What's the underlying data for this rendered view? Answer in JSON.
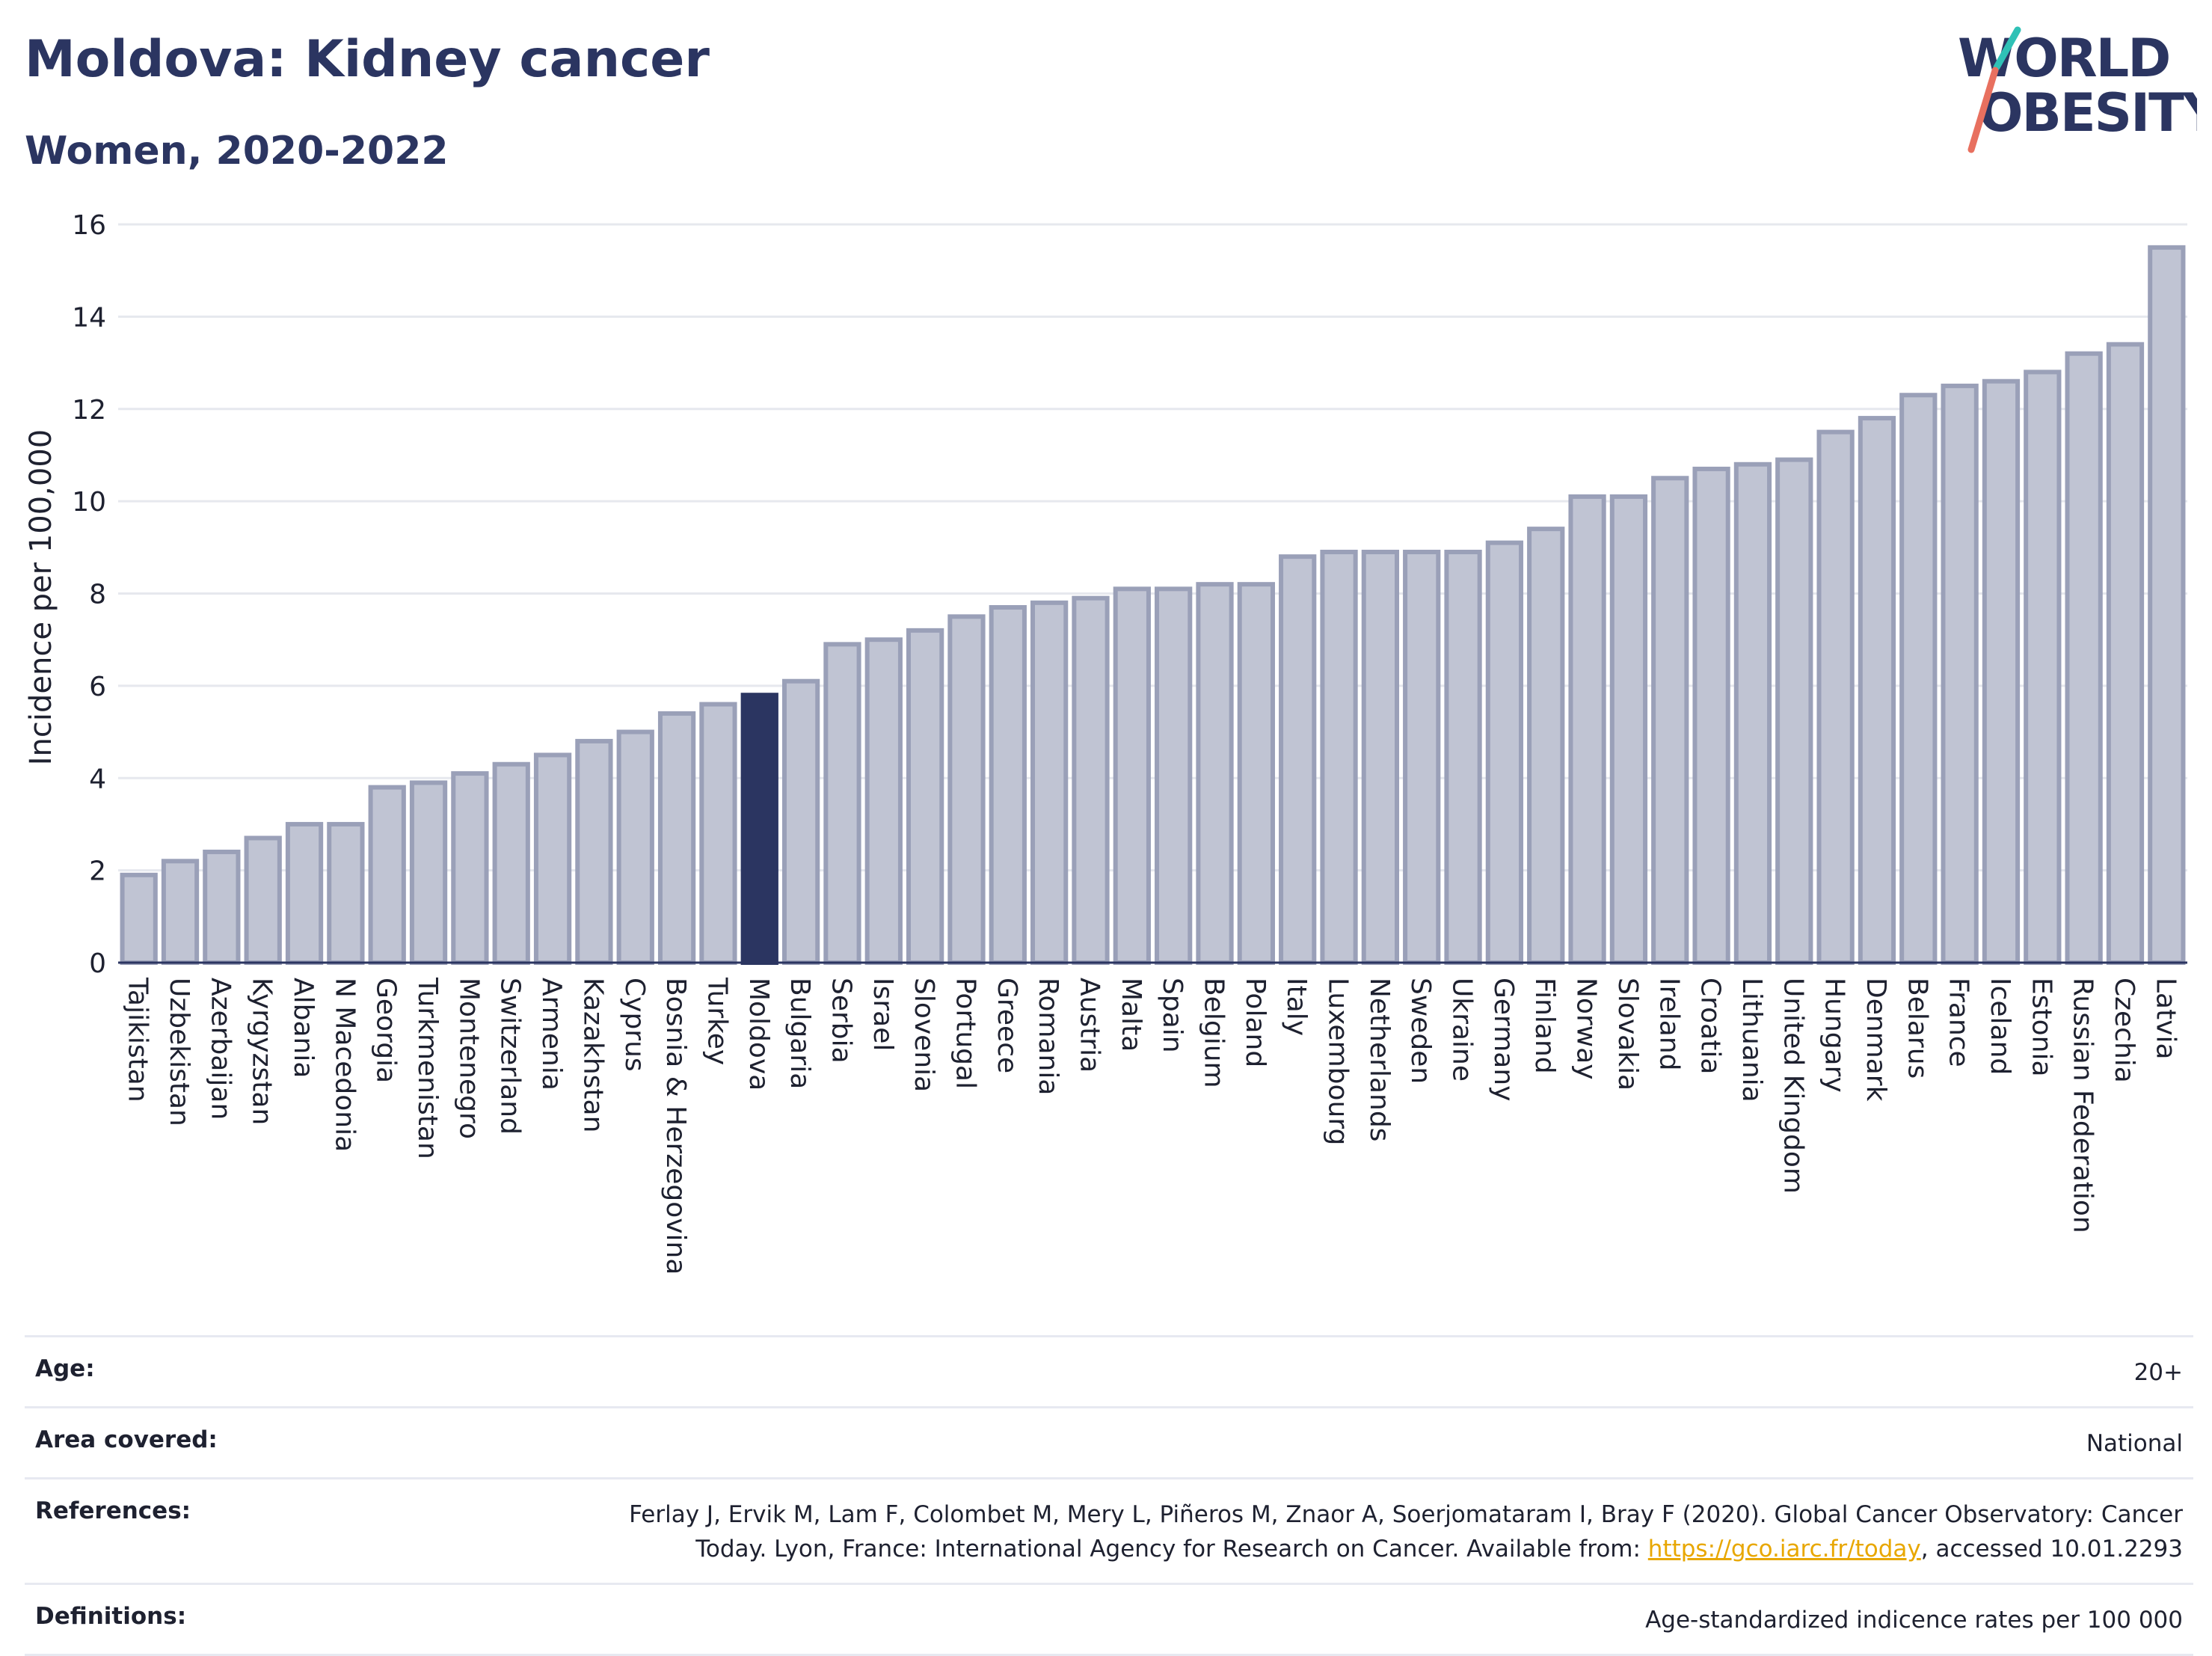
{
  "title": "Moldova: Kidney cancer",
  "subtitle": "Women, 2020-2022",
  "logo": {
    "line1": "WORLD",
    "line2": "OBESITY"
  },
  "colors": {
    "bar": "#c0c4d3",
    "bar_stroke": "#9aa0b8",
    "highlight": "#2b3561",
    "title": "#2b3561",
    "link": "#e8a700"
  },
  "chart_data": {
    "type": "bar",
    "ylabel": "Incidence per 100,000",
    "xlabel": "",
    "ylim": [
      0,
      16
    ],
    "yticks": [
      "0",
      "2",
      "4",
      "6",
      "8",
      "10",
      "12",
      "14",
      "16"
    ],
    "grid": true,
    "highlight": "Moldova",
    "categories": [
      "Tajikistan",
      "Uzbekistan",
      "Azerbaijan",
      "Kyrgyzstan",
      "Albania",
      "N Macedonia",
      "Georgia",
      "Turkmenistan",
      "Montenegro",
      "Switzerland",
      "Armenia",
      "Kazakhstan",
      "Cyprus",
      "Bosnia & Herzegovina",
      "Turkey",
      "Moldova",
      "Bulgaria",
      "Serbia",
      "Israel",
      "Slovenia",
      "Portugal",
      "Greece",
      "Romania",
      "Austria",
      "Malta",
      "Spain",
      "Belgium",
      "Poland",
      "Italy",
      "Luxembourg",
      "Netherlands",
      "Sweden",
      "Ukraine",
      "Germany",
      "Finland",
      "Norway",
      "Slovakia",
      "Ireland",
      "Croatia",
      "Lithuania",
      "United Kingdom",
      "Hungary",
      "Denmark",
      "Belarus",
      "France",
      "Iceland",
      "Estonia",
      "Russian Federation",
      "Czechia",
      "Latvia"
    ],
    "values": [
      1.9,
      2.2,
      2.4,
      2.7,
      3.0,
      3.0,
      3.8,
      3.9,
      4.1,
      4.3,
      4.5,
      4.8,
      5.0,
      5.4,
      5.6,
      5.8,
      6.1,
      6.9,
      7.0,
      7.2,
      7.5,
      7.7,
      7.8,
      7.9,
      8.1,
      8.1,
      8.2,
      8.2,
      8.8,
      8.9,
      8.9,
      8.9,
      8.9,
      9.1,
      9.4,
      10.1,
      10.1,
      10.5,
      10.7,
      10.8,
      10.9,
      11.5,
      11.8,
      12.3,
      12.5,
      12.6,
      12.8,
      13.2,
      13.4,
      15.5
    ]
  },
  "info": {
    "age_label": "Age:",
    "age_value": "20+",
    "area_label": "Area covered:",
    "area_value": "National",
    "references_label": "References:",
    "references_text_1": "Ferlay J, Ervik M, Lam F, Colombet M, Mery L, Piñeros M, Znaor A, Soerjomataram I, Bray F (2020). Global Cancer Observatory: Cancer Today. Lyon, France: International Agency for Research on Cancer. Available from: ",
    "references_link": "https://gco.iarc.fr/today",
    "references_text_2": ", accessed 10.01.2293",
    "definitions_label": "Definitions:",
    "definitions_value": "Age-standardized indicence rates per 100 000"
  }
}
